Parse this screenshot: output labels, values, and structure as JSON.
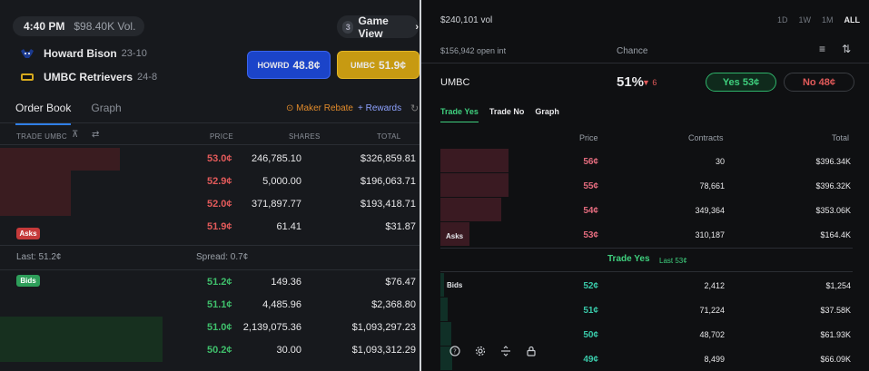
{
  "left": {
    "time": "4:40 PM",
    "volume": "$98.40K Vol.",
    "game_view": {
      "count": "3",
      "label": "Game View",
      "chevron": "chevron-right-icon"
    },
    "teams": [
      {
        "name": "Howard Bison",
        "record": "23-10",
        "logo_icon": "bison-logo-icon"
      },
      {
        "name": "UMBC Retrievers",
        "record": "24-8",
        "logo_icon": "umbc-logo-icon"
      }
    ],
    "buttons": {
      "howard": {
        "team": "HOWRD",
        "price": "48.8¢"
      },
      "umbc": {
        "team": "UMBC",
        "price": "51.9¢"
      }
    },
    "tabs": [
      "Order Book",
      "Graph"
    ],
    "maker_rebate": "Maker Rebate",
    "rewards": "+ Rewards",
    "columns": {
      "trade": "TRADE UMBC",
      "price": "PRICE",
      "shares": "SHARES",
      "total": "TOTAL"
    },
    "asks": [
      {
        "price": "53.0¢",
        "shares": "246,785.10",
        "total": "$326,859.81",
        "depth": 0.47
      },
      {
        "price": "52.9¢",
        "shares": "5,000.00",
        "total": "$196,063.71",
        "depth": 0.28
      },
      {
        "price": "52.0¢",
        "shares": "371,897.77",
        "total": "$193,418.71",
        "depth": 0.28
      },
      {
        "price": "51.9¢",
        "shares": "61.41",
        "total": "$31.87",
        "depth": 0.0
      }
    ],
    "asks_label": "Asks",
    "last": "Last: 51.2¢",
    "spread": "Spread: 0.7¢",
    "bids_label": "Bids",
    "bids": [
      {
        "price": "51.2¢",
        "shares": "149.36",
        "total": "$76.47",
        "depth": 0.0
      },
      {
        "price": "51.1¢",
        "shares": "4,485.96",
        "total": "$2,368.80",
        "depth": 0.0
      },
      {
        "price": "51.0¢",
        "shares": "2,139,075.36",
        "total": "$1,093,297.23",
        "depth": 0.64
      },
      {
        "price": "50.2¢",
        "shares": "30.00",
        "total": "$1,093,312.29",
        "depth": 0.64
      }
    ]
  },
  "right": {
    "volume": "$240,101 vol",
    "periods": [
      "1D",
      "1W",
      "1M",
      "ALL"
    ],
    "active_period": "ALL",
    "open_interest": "$156,942 open int",
    "chance_label": "Chance",
    "market": "UMBC",
    "chance": "51%",
    "change": "▼ 6",
    "yes_button": "Yes 53¢",
    "no_button": "No 48¢",
    "tabs": [
      "Trade Yes",
      "Trade No",
      "Graph"
    ],
    "columns": {
      "price": "Price",
      "contracts": "Contracts",
      "total": "Total"
    },
    "asks_label": "Asks",
    "asks": [
      {
        "price": "56¢",
        "contracts": "30",
        "total": "$396.34K",
        "depth": 0.97
      },
      {
        "price": "55¢",
        "contracts": "78,661",
        "total": "$396.32K",
        "depth": 0.97
      },
      {
        "price": "54¢",
        "contracts": "349,364",
        "total": "$353.06K",
        "depth": 0.87
      },
      {
        "price": "53¢",
        "contracts": "310,187",
        "total": "$164.4K",
        "depth": 0.41
      }
    ],
    "mid_label": "Trade Yes",
    "mid_last": "Last 53¢",
    "bids_label": "Bids",
    "bids": [
      {
        "price": "52¢",
        "contracts": "2,412",
        "total": "$1,254",
        "depth": 0.05
      },
      {
        "price": "51¢",
        "contracts": "71,224",
        "total": "$37.58K",
        "depth": 0.11
      },
      {
        "price": "50¢",
        "contracts": "48,702",
        "total": "$61.93K",
        "depth": 0.16
      },
      {
        "price": "49¢",
        "contracts": "8,499",
        "total": "$66.09K",
        "depth": 0.17
      }
    ],
    "bottom_icons": [
      "help-icon",
      "settings-icon",
      "split-icon",
      "lock-icon"
    ]
  },
  "colors": {
    "ask": "#e25a5a",
    "bid": "#3fbf6b",
    "howard": "#1b44c9",
    "umbc": "#c79a12"
  }
}
